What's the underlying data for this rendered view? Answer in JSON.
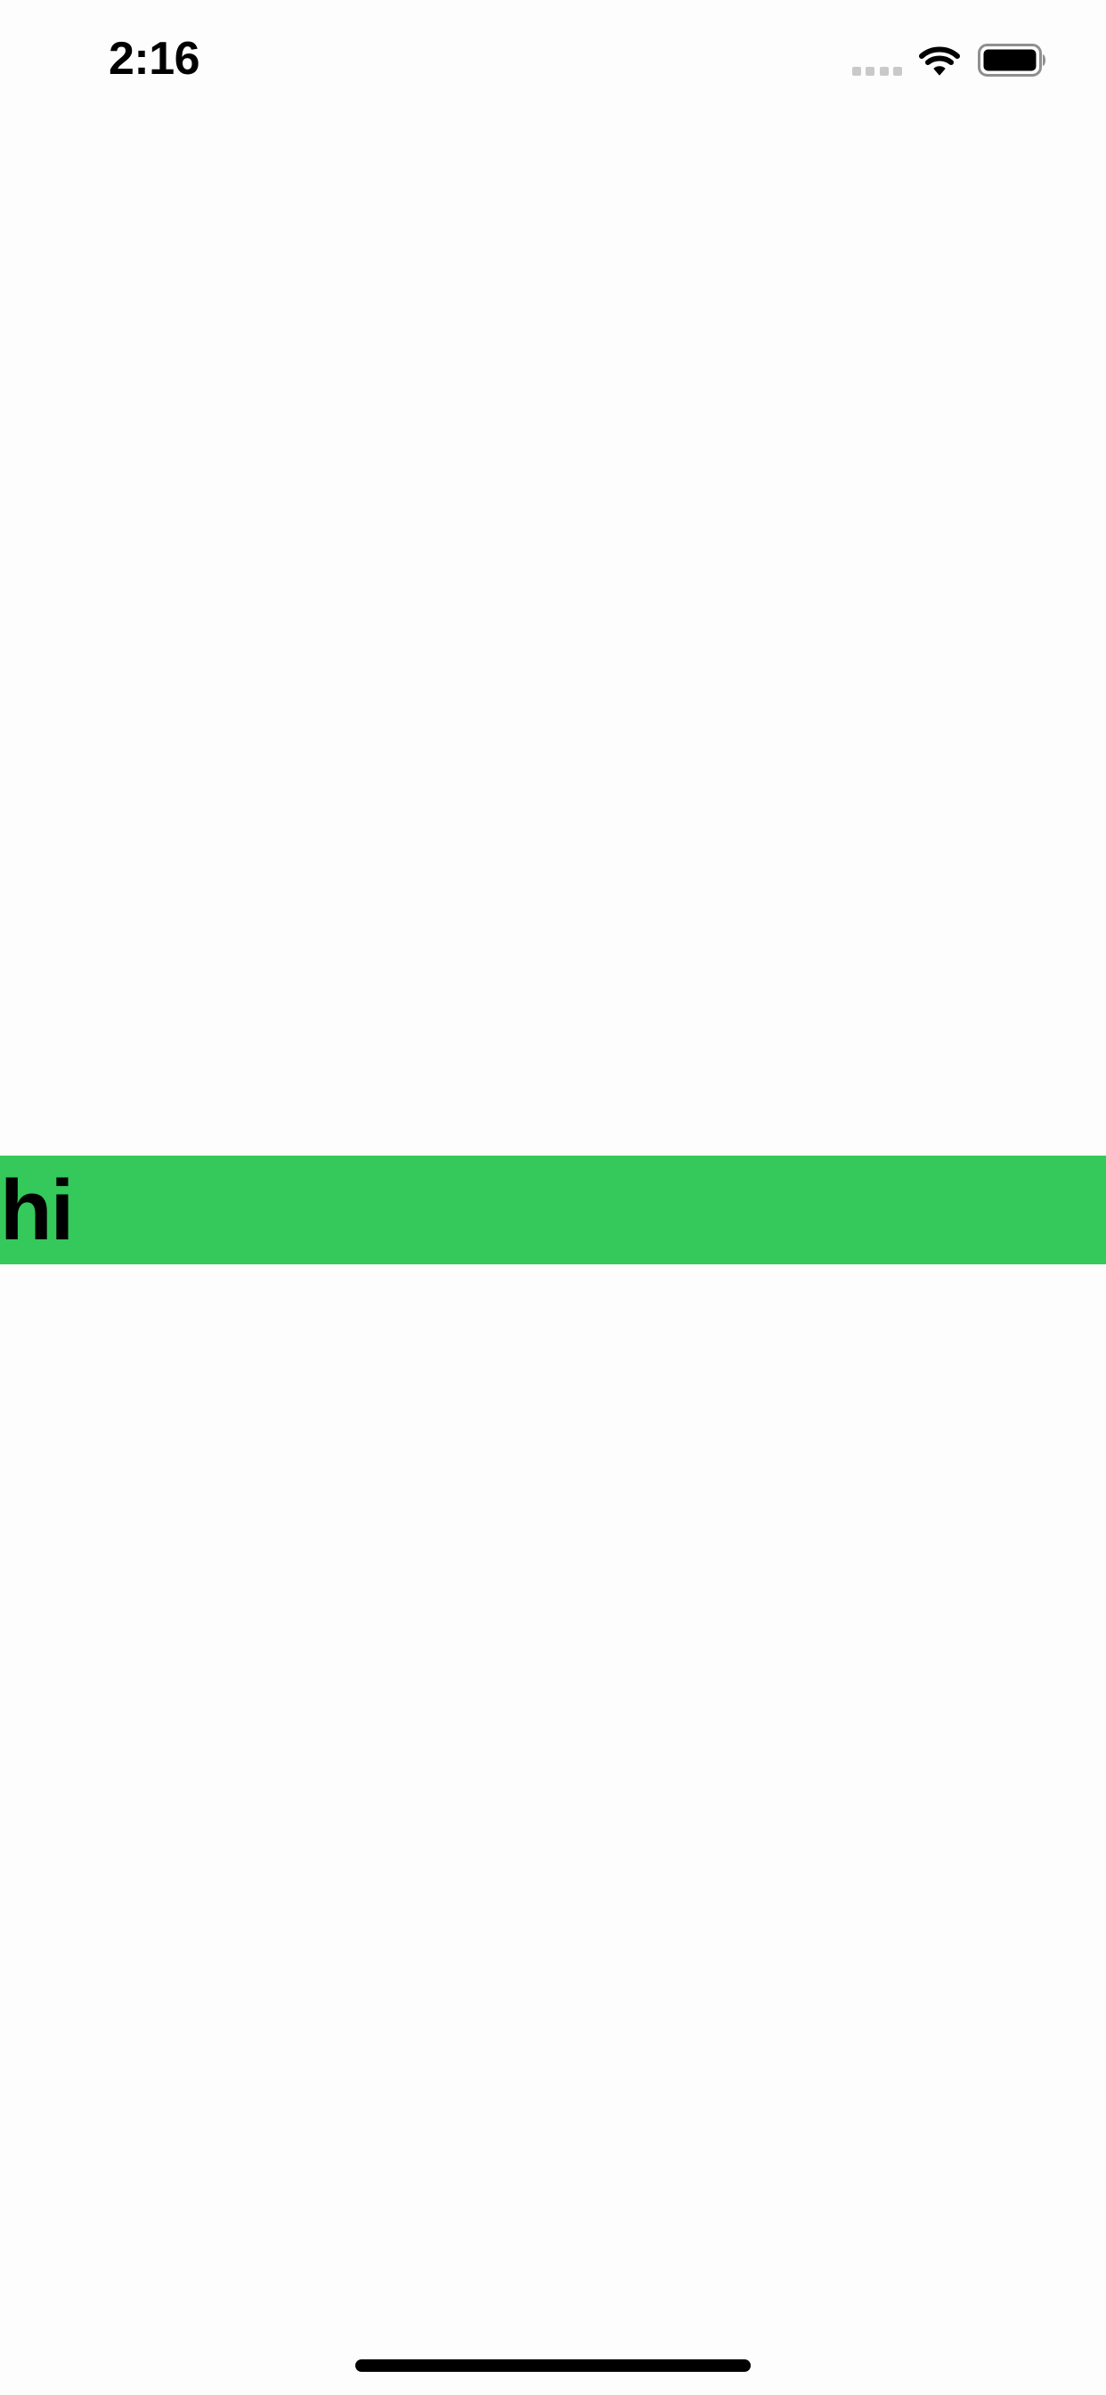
{
  "status_bar": {
    "time": "2:16",
    "icons": [
      "cellular-signal-icon",
      "wifi-icon",
      "battery-icon"
    ],
    "signal_color": "#c9c9c9"
  },
  "main": {
    "banner": {
      "label": "hi",
      "background_color": "#34c95a"
    }
  },
  "colors": {
    "background": "#fdfdfd",
    "text": "#000000"
  }
}
